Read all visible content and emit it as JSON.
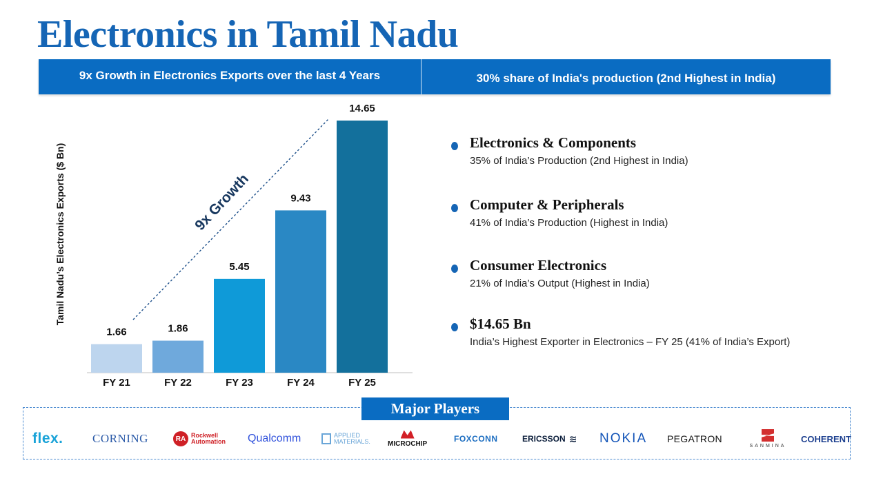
{
  "page": {
    "title": "Electronics in Tamil Nadu"
  },
  "banner": {
    "left_text": "9x Growth in Electronics Exports over the last 4 Years",
    "right_text": "30% share of India's production (2nd Highest in India)"
  },
  "chart_data": {
    "type": "bar",
    "title": "",
    "xlabel": "",
    "ylabel": "Tamil Nadu’s Electronics Exports ($ Bn)",
    "categories": [
      "FY 21",
      "FY 22",
      "FY 23",
      "FY 24",
      "FY 25"
    ],
    "values": [
      1.66,
      1.86,
      5.45,
      9.43,
      14.65
    ],
    "value_labels": [
      "1.66",
      "1.86",
      "5.45",
      "9.43",
      "14.65"
    ],
    "ylim": [
      0,
      15
    ],
    "grid": false,
    "annotation": "9x Growth",
    "bar_colors": [
      "#bdd5ee",
      "#6fa9dc",
      "#0f9ad8",
      "#2a88c4",
      "#13709c"
    ]
  },
  "highlights": [
    {
      "title": "Electronics & Components",
      "desc": "35% of India’s Production (2nd Highest in India)"
    },
    {
      "title": "Computer & Peripherals",
      "desc": "41% of India’s Production (Highest in India)"
    },
    {
      "title": "Consumer Electronics",
      "desc": "21% of India’s Output (Highest in India)"
    },
    {
      "title": "$14.65 Bn",
      "desc": "India’s Highest Exporter in Electronics – FY 25 (41% of India’s Export)"
    }
  ],
  "players": {
    "title": "Major Players",
    "logos": {
      "flex": "flex.",
      "corning": "CORNING",
      "rockwell_badge": "RA",
      "rockwell_line1": "Rockwell",
      "rockwell_line2": "Automation",
      "qualcomm": "Qualcomm",
      "applied_line1": "APPLIED",
      "applied_line2": "MATERIALS.",
      "microchip": "MICROCHIP",
      "foxconn": "FOXCONN",
      "ericsson": "ERICSSON",
      "nokia": "NOKIA",
      "pegatron": "PEGATRON",
      "sanmina": "SANMINA",
      "coherent": "COHERENT"
    }
  },
  "colors": {
    "brand_blue": "#0a6cc2",
    "title_blue": "#1565b5",
    "growth_text": "#17375e"
  }
}
